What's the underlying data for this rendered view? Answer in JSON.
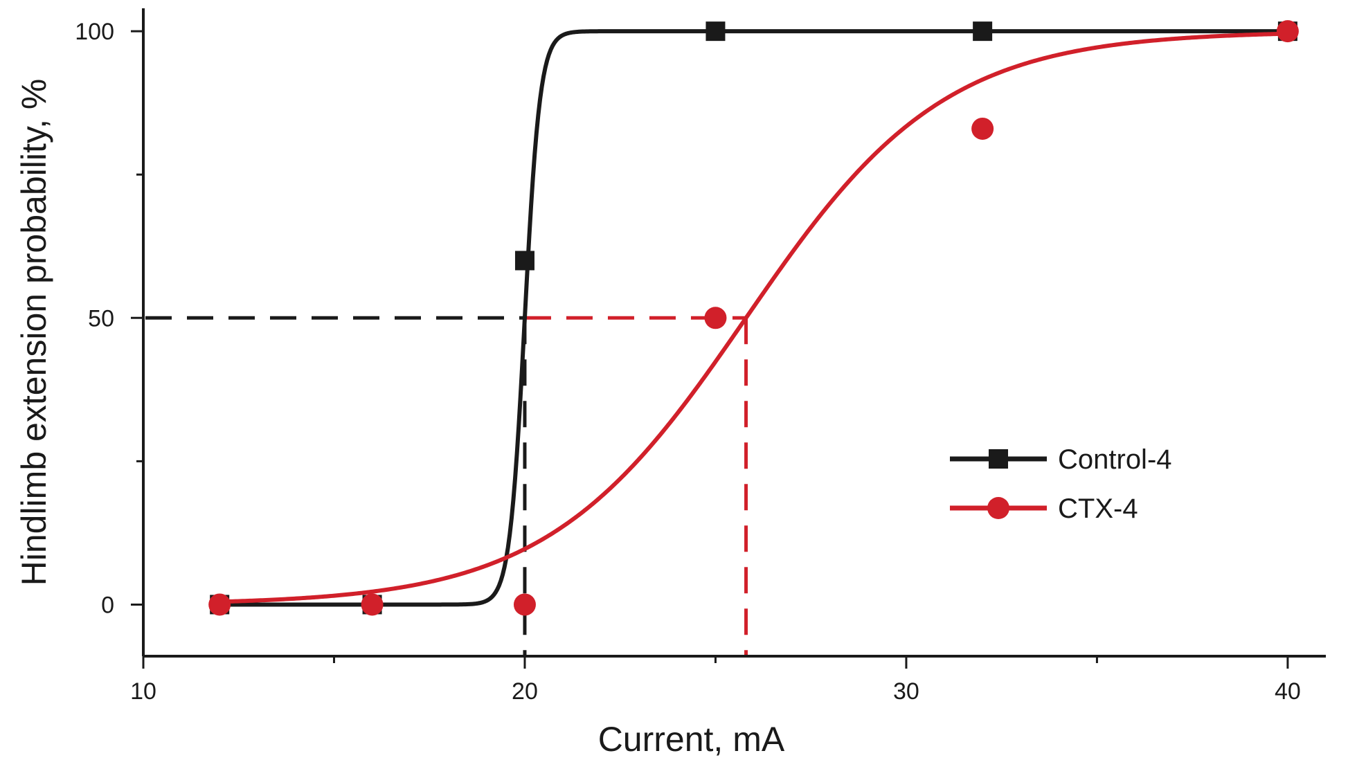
{
  "chart_data": {
    "type": "scatter",
    "title": "",
    "xlabel": "Current, mA",
    "ylabel": "Hindlimb extension probability, %",
    "xlim": [
      10,
      41
    ],
    "ylim": [
      -9,
      104
    ],
    "x_ticks_major": [
      10,
      20,
      30,
      40
    ],
    "x_ticks_minor": [
      15,
      25,
      35
    ],
    "y_ticks_major": [
      0,
      50,
      100
    ],
    "y_ticks_minor": [
      25,
      75
    ],
    "grid": false,
    "legend_position": "right",
    "series": [
      {
        "name": "Control-4",
        "color": "#1a1a1a",
        "marker": "square",
        "x": [
          12,
          16,
          20,
          25,
          32,
          40
        ],
        "y": [
          0,
          0,
          60,
          100,
          100,
          100
        ],
        "fit": {
          "model": "logistic",
          "x50": 20.0,
          "slope": 0.2
        },
        "half_effect_marker": {
          "y": 50,
          "x": 20.0,
          "style": "dashed"
        }
      },
      {
        "name": "CTX-4",
        "color": "#d1202a",
        "marker": "circle",
        "x": [
          12,
          16,
          20,
          25,
          32,
          40
        ],
        "y": [
          0,
          0,
          0,
          50,
          83,
          100
        ],
        "fit": {
          "model": "logistic",
          "x50": 25.8,
          "slope": 2.6
        },
        "half_effect_marker": {
          "y": 50,
          "x": 25.8,
          "style": "dashed"
        }
      }
    ]
  }
}
